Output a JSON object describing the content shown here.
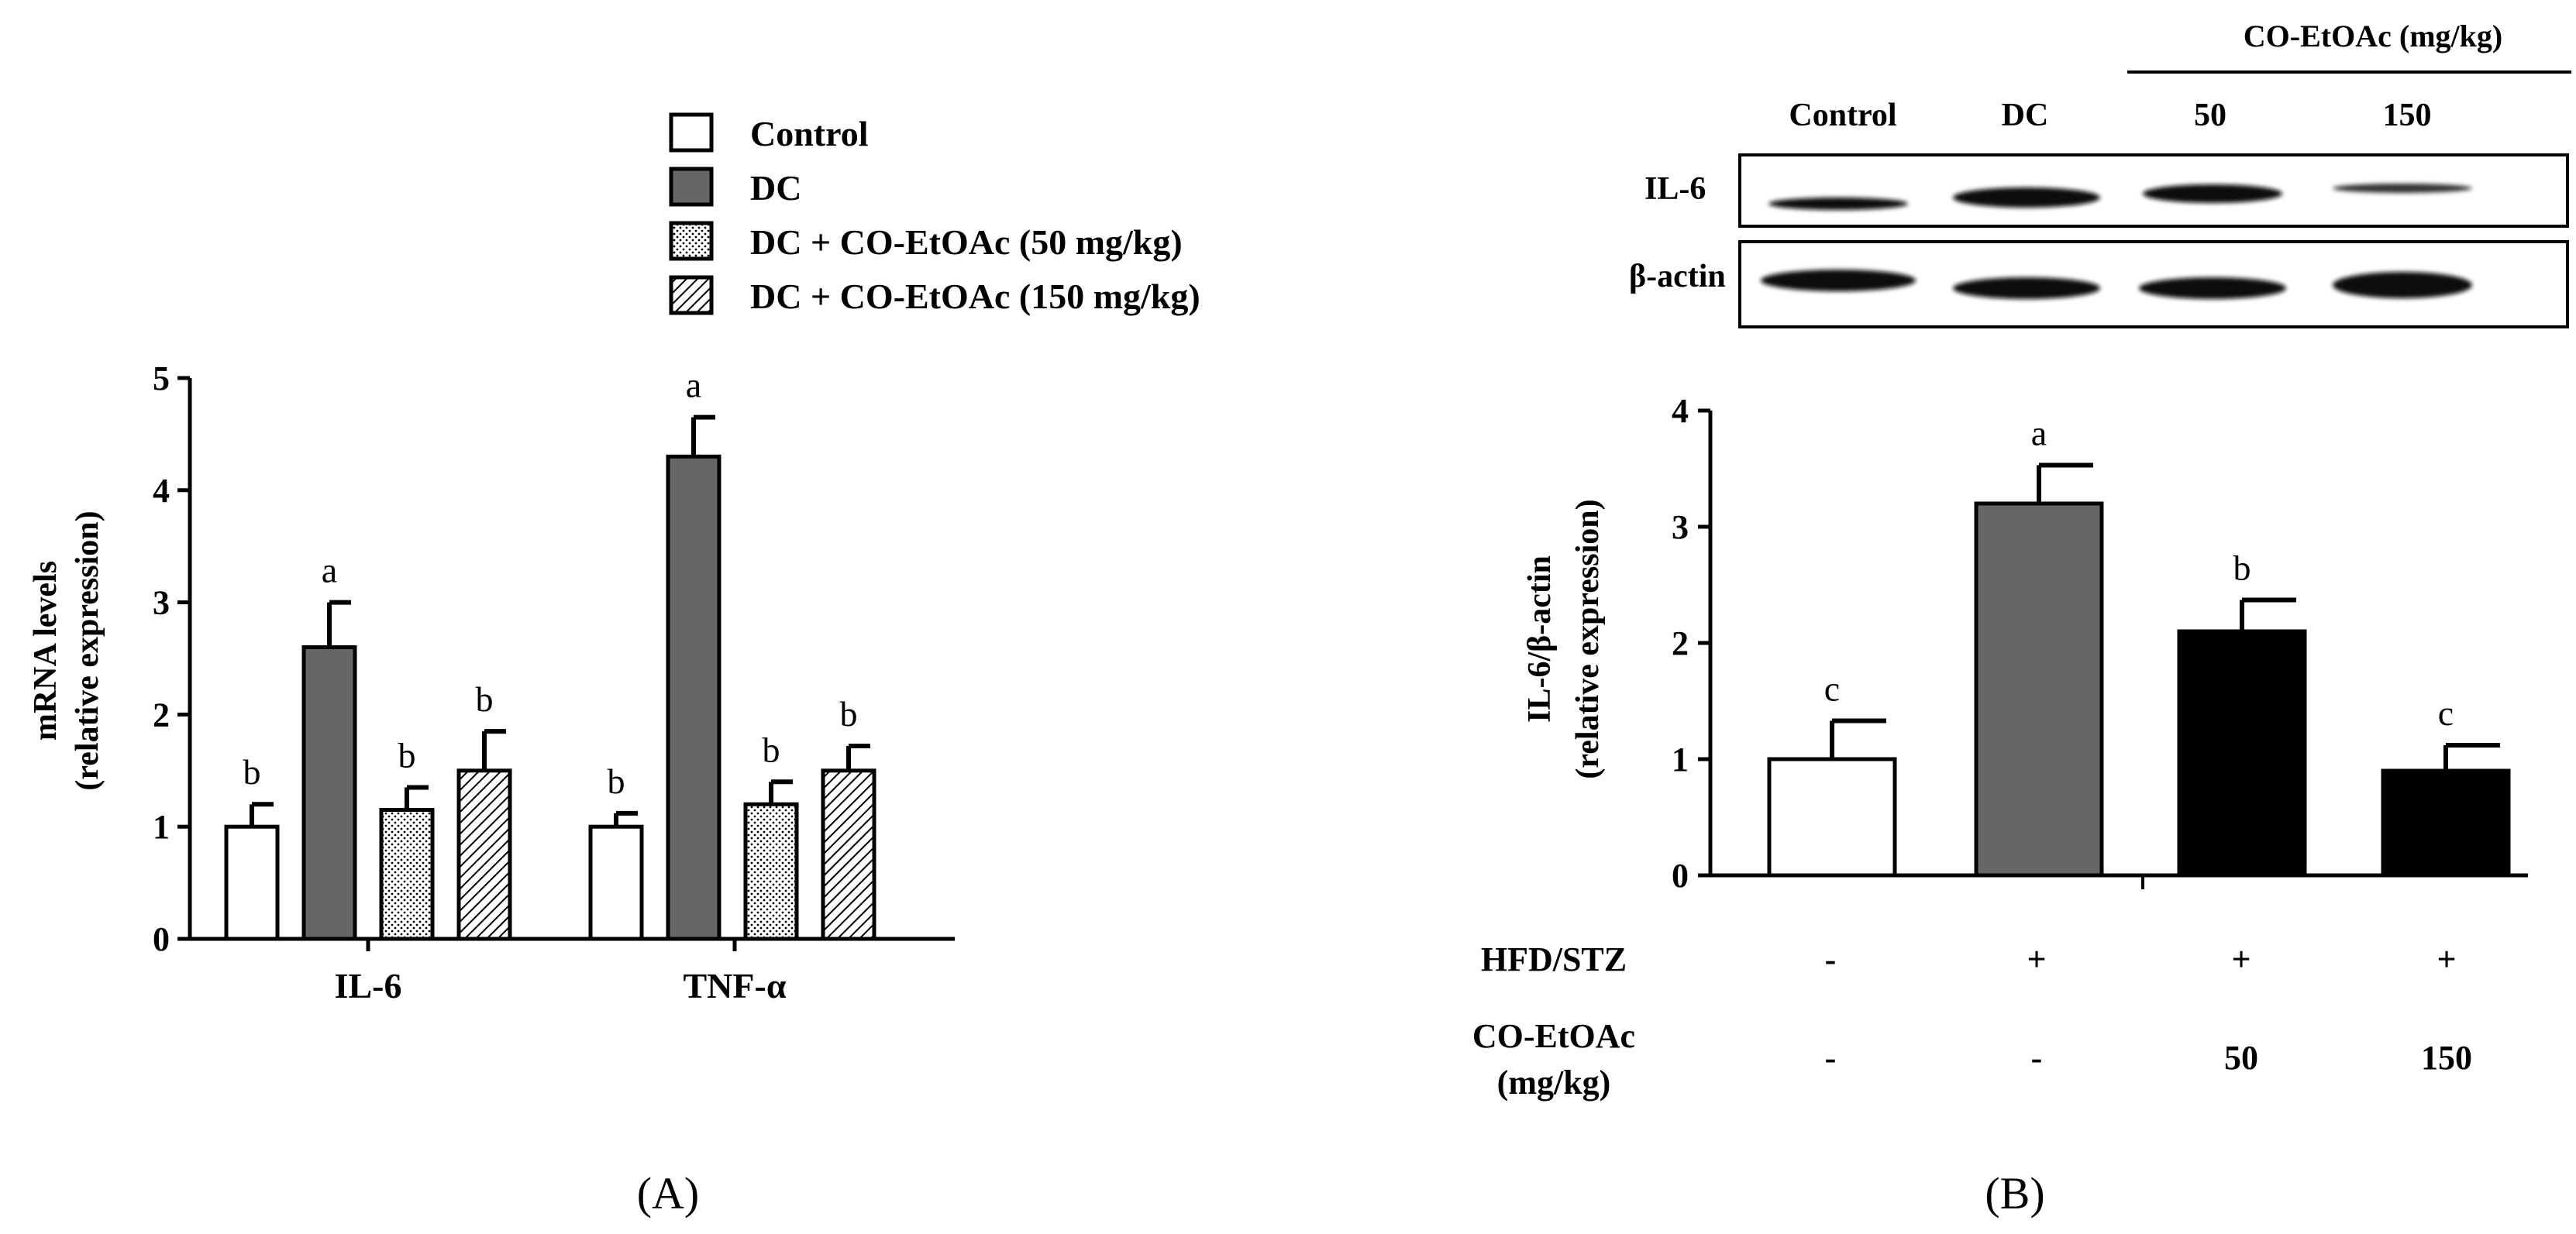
{
  "panel_a": {
    "label": "(A)",
    "legend": [
      {
        "label": "Control",
        "pattern": "white"
      },
      {
        "label": "DC",
        "pattern": "gray"
      },
      {
        "label": "DC + CO-EtOAc (50 mg/kg)",
        "pattern": "dots"
      },
      {
        "label": "DC + CO-EtOAc (150 mg/kg)",
        "pattern": "hatch"
      }
    ]
  },
  "panel_b": {
    "label": "(B)",
    "blot": {
      "treatment_header": "CO-EtOAc (mg/kg)",
      "lanes": [
        "Control",
        "DC",
        "50",
        "150"
      ],
      "rows": [
        "IL-6",
        "β-actin"
      ]
    },
    "conditions": {
      "row1_label": "HFD/STZ",
      "row1_values": [
        "-",
        "+",
        "+",
        "+"
      ],
      "row2_label_line1": "CO-EtOAc",
      "row2_label_line2": "(mg/kg)",
      "row2_values": [
        "-",
        "-",
        "50",
        "150"
      ]
    }
  },
  "colors": {
    "gray_bar": "#666666",
    "black_bar": "#000000",
    "white_bar": "#ffffff"
  },
  "chart_data": [
    {
      "type": "bar",
      "title": "",
      "xlabel": "",
      "ylabel_line1": "mRNA levels",
      "ylabel_line2": "(relative expression)",
      "ylim": [
        0,
        5
      ],
      "yticks": [
        "0",
        "1",
        "2",
        "3",
        "4",
        "5"
      ],
      "categories": [
        "IL-6",
        "TNF-α"
      ],
      "series": [
        {
          "name": "Control",
          "pattern": "white",
          "values": [
            1.0,
            1.0
          ],
          "errors": [
            0.2,
            0.12
          ],
          "letters": [
            "b",
            "b"
          ]
        },
        {
          "name": "DC",
          "pattern": "gray",
          "values": [
            2.6,
            4.3
          ],
          "errors": [
            0.4,
            0.35
          ],
          "letters": [
            "a",
            "a"
          ]
        },
        {
          "name": "DC + CO-EtOAc (50 mg/kg)",
          "pattern": "dots",
          "values": [
            1.15,
            1.2
          ],
          "errors": [
            0.2,
            0.2
          ],
          "letters": [
            "b",
            "b"
          ]
        },
        {
          "name": "DC + CO-EtOAc (150 mg/kg)",
          "pattern": "hatch",
          "values": [
            1.5,
            1.5
          ],
          "errors": [
            0.35,
            0.22
          ],
          "letters": [
            "b",
            "b"
          ]
        }
      ]
    },
    {
      "type": "bar",
      "title": "",
      "xlabel": "",
      "ylabel_line1": "IL-6/β-actin",
      "ylabel_line2": "(relative expression)",
      "ylim": [
        0,
        4
      ],
      "yticks": [
        "0",
        "1",
        "2",
        "3",
        "4"
      ],
      "categories": [
        "Control",
        "DC",
        "50",
        "150"
      ],
      "values": [
        1.0,
        3.2,
        2.1,
        0.9
      ],
      "errors": [
        0.33,
        0.33,
        0.27,
        0.22
      ],
      "letters": [
        "c",
        "a",
        "b",
        "c"
      ],
      "fills": [
        "white",
        "gray",
        "black",
        "black"
      ]
    }
  ]
}
